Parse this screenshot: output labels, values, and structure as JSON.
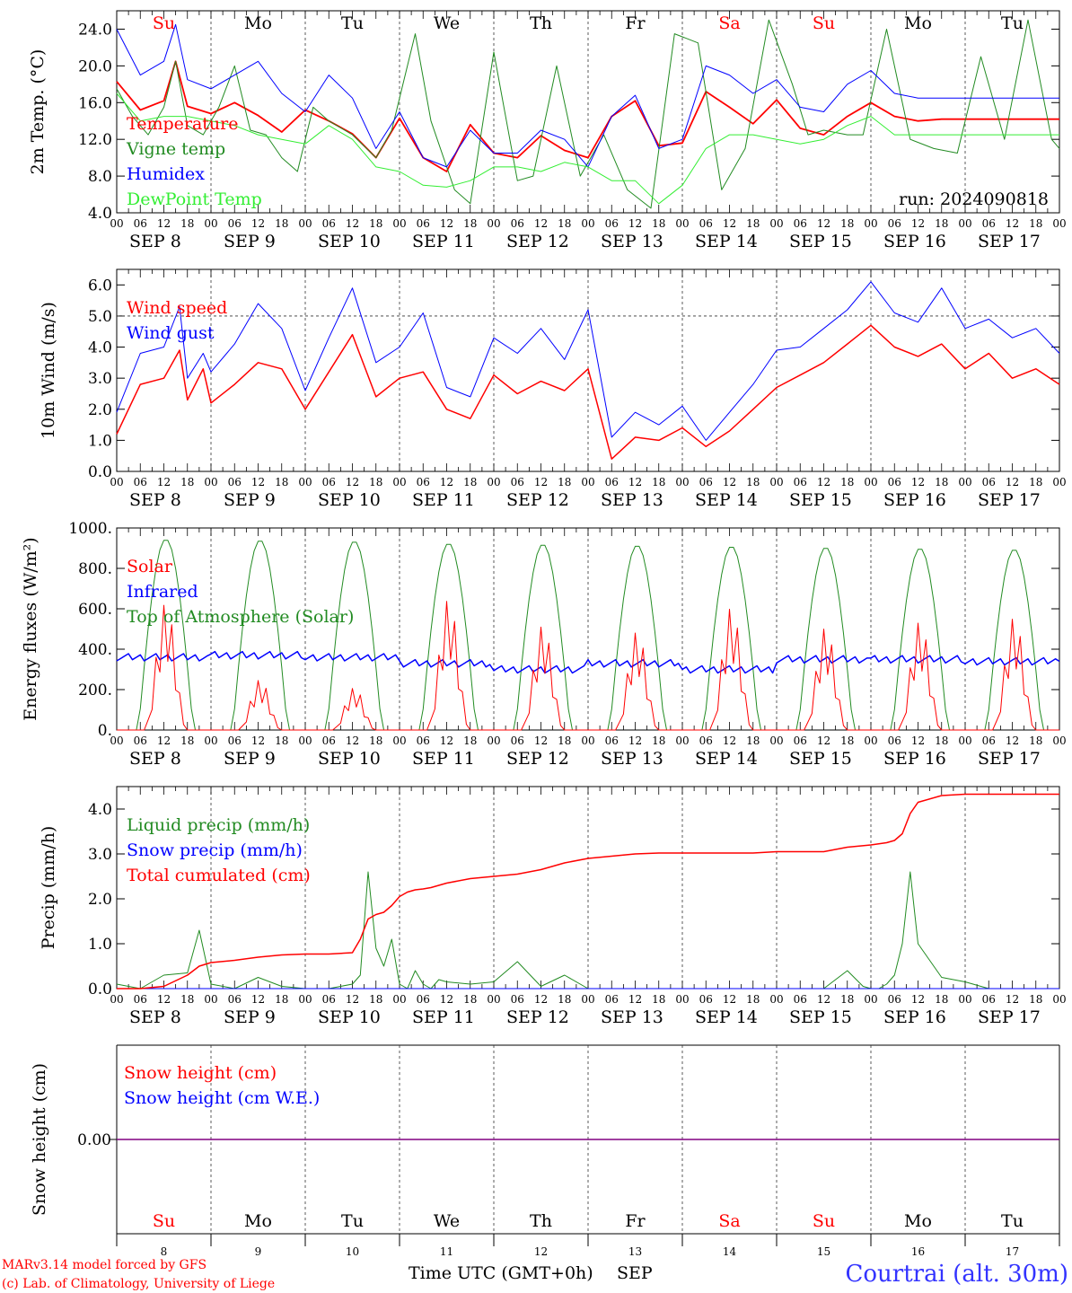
{
  "days": [
    "Su",
    "Mo",
    "Tu",
    "We",
    "Th",
    "Fr",
    "Sa",
    "Su",
    "Mo",
    "Tu"
  ],
  "weekend_color": "#ff0000",
  "weekday_color": "#000000",
  "dates": [
    "SEP  8",
    "SEP  9",
    "SEP 10",
    "SEP 11",
    "SEP 12",
    "SEP 13",
    "SEP 14",
    "SEP 15",
    "SEP 16",
    "SEP 17"
  ],
  "hour_labels": [
    "00",
    "06",
    "12",
    "18"
  ],
  "end_hour_label": "00",
  "bottom_day_numbers": [
    "8",
    "9",
    "10",
    "11",
    "12",
    "13",
    "14",
    "15",
    "16",
    "17"
  ],
  "footer": {
    "model": "MARv3.14 model forced by GFS",
    "copyright": "(c) Lab. of Climatology, University of Liege",
    "xlabel": "Time UTC (GMT+0h)",
    "month": "SEP",
    "station": "Courtrai (alt. 30m)"
  },
  "run_label": "run: 2024090818",
  "colors": {
    "red": "#ff0000",
    "green": "#228b22",
    "blue": "#0000ff",
    "lightgreen": "#33ee33",
    "purple": "#800080"
  },
  "chart_data": [
    {
      "type": "line",
      "ylabel": "2m Temp. (°C)",
      "ylim": [
        4,
        26
      ],
      "yticks": [
        "4.0",
        "8.0",
        "12.0",
        "16.0",
        "20.0",
        "24.0"
      ],
      "ytick_values": [
        4,
        8,
        12,
        16,
        20,
        24
      ],
      "x_unit": "hours since SEP 8 00 UTC",
      "series": [
        {
          "name": "Temperature",
          "color": "#ff0000",
          "width": 1.8,
          "x": [
            0,
            6,
            12,
            15,
            18,
            24,
            30,
            36,
            42,
            48,
            54,
            60,
            66,
            72,
            78,
            84,
            90,
            96,
            102,
            108,
            114,
            120,
            126,
            132,
            138,
            144,
            150,
            156,
            162,
            168,
            174,
            180,
            186,
            192,
            198,
            204,
            210,
            216,
            222,
            228,
            234,
            240
          ],
          "y": [
            18.3,
            15.2,
            16.2,
            20.5,
            15.6,
            14.8,
            16.0,
            14.6,
            12.8,
            15.2,
            14.0,
            12.6,
            10.0,
            14.3,
            10.0,
            8.5,
            13.6,
            10.5,
            10.0,
            12.4,
            10.8,
            10.0,
            14.5,
            16.2,
            11.3,
            11.6,
            17.2,
            15.5,
            13.7,
            16.3,
            13.2,
            12.5,
            14.5,
            16.0,
            14.5,
            14.0,
            14.2,
            14.2,
            14.2,
            14.2,
            14.2,
            14.2
          ]
        },
        {
          "name": "Vigne temp",
          "color": "#228b22",
          "width": 1,
          "x": [
            0,
            4,
            8,
            12,
            15,
            18,
            22,
            26,
            30,
            34,
            38,
            42,
            46,
            50,
            54,
            60,
            66,
            70,
            76,
            80,
            86,
            90,
            96,
            102,
            106,
            112,
            118,
            124,
            130,
            136,
            142,
            148,
            154,
            160,
            166,
            172,
            176,
            180,
            186,
            190,
            196,
            202,
            208,
            214,
            220,
            226,
            232,
            238,
            240
          ],
          "y": [
            17.5,
            14.5,
            12.5,
            15.5,
            20.5,
            13.5,
            12.5,
            15.5,
            20.0,
            13.0,
            12.5,
            10.0,
            8.5,
            15.5,
            14.0,
            12.5,
            10.0,
            13.0,
            23.5,
            14.0,
            6.5,
            5.0,
            21.5,
            7.5,
            8.0,
            20.0,
            8.0,
            12.5,
            6.5,
            4.5,
            23.5,
            22.5,
            6.5,
            11.0,
            25.0,
            18.0,
            12.5,
            13.0,
            12.5,
            12.5,
            24.0,
            12.0,
            11.0,
            10.5,
            21.0,
            12.0,
            25.0,
            12.0,
            11.0
          ]
        },
        {
          "name": "Humidex",
          "color": "#0000ff",
          "width": 1,
          "x": [
            0,
            6,
            12,
            15,
            18,
            24,
            30,
            36,
            42,
            48,
            54,
            60,
            66,
            72,
            78,
            84,
            90,
            96,
            102,
            108,
            114,
            120,
            126,
            132,
            138,
            144,
            150,
            156,
            162,
            168,
            174,
            180,
            186,
            192,
            198,
            204,
            210,
            216,
            222,
            228,
            234,
            240
          ],
          "y": [
            24.0,
            19.0,
            20.5,
            24.5,
            18.5,
            17.5,
            19.0,
            20.5,
            17.0,
            15.0,
            19.0,
            16.5,
            11.0,
            15.0,
            10.0,
            9.0,
            13.0,
            10.5,
            10.5,
            13.0,
            12.0,
            9.0,
            14.5,
            16.8,
            11.0,
            12.0,
            20.0,
            19.0,
            17.0,
            18.5,
            15.5,
            15.0,
            18.0,
            19.5,
            17.0,
            16.5,
            16.5,
            16.5,
            16.5,
            16.5,
            16.5,
            16.5
          ]
        },
        {
          "name": "DewPoint Temp",
          "color": "#33ee33",
          "width": 1,
          "x": [
            0,
            6,
            12,
            18,
            24,
            30,
            36,
            42,
            48,
            54,
            60,
            66,
            72,
            78,
            84,
            90,
            96,
            102,
            108,
            114,
            120,
            126,
            132,
            138,
            144,
            150,
            156,
            162,
            168,
            174,
            180,
            186,
            192,
            198,
            204,
            210,
            216,
            222,
            228,
            234,
            240
          ],
          "y": [
            17.0,
            14.0,
            14.5,
            14.5,
            14.0,
            13.5,
            12.5,
            12.0,
            11.5,
            13.5,
            12.0,
            9.0,
            8.5,
            7.0,
            6.8,
            7.5,
            9.0,
            9.0,
            8.5,
            9.5,
            9.0,
            7.5,
            7.5,
            5.0,
            7.0,
            11.0,
            12.5,
            12.5,
            12.0,
            11.5,
            12.0,
            13.5,
            14.5,
            12.5,
            12.5,
            12.5,
            12.5,
            12.5,
            12.5,
            12.5,
            12.5
          ]
        }
      ],
      "legend": [
        "Temperature",
        "Vigne temp",
        "Humidex",
        "DewPoint Temp"
      ]
    },
    {
      "type": "line",
      "ylabel": "10m Wind (m/s)",
      "ylim": [
        0,
        6.5
      ],
      "yticks": [
        "0.0",
        "1.0",
        "2.0",
        "3.0",
        "4.0",
        "5.0",
        "6.0"
      ],
      "ytick_values": [
        0,
        1,
        2,
        3,
        4,
        5,
        6
      ],
      "reference_line": 5.0,
      "x_unit": "hours since SEP 8 00 UTC",
      "series": [
        {
          "name": "Wind speed",
          "color": "#ff0000",
          "width": 1.5,
          "x": [
            0,
            6,
            12,
            16,
            18,
            22,
            24,
            30,
            36,
            42,
            48,
            54,
            60,
            66,
            72,
            78,
            84,
            90,
            96,
            102,
            108,
            114,
            120,
            126,
            132,
            138,
            144,
            150,
            156,
            162,
            168,
            174,
            180,
            186,
            192,
            198,
            204,
            210,
            216,
            222,
            228,
            234,
            240
          ],
          "y": [
            1.2,
            2.8,
            3.0,
            3.9,
            2.3,
            3.3,
            2.2,
            2.8,
            3.5,
            3.3,
            2.0,
            3.2,
            4.4,
            2.4,
            3.0,
            3.2,
            2.0,
            1.7,
            3.1,
            2.5,
            2.9,
            2.6,
            3.3,
            0.4,
            1.1,
            1.0,
            1.4,
            0.8,
            1.3,
            2.0,
            2.7,
            3.1,
            3.5,
            4.1,
            4.7,
            4.0,
            3.7,
            4.1,
            3.3,
            3.8,
            3.0,
            3.3,
            2.8
          ]
        },
        {
          "name": "Wind gust",
          "color": "#0000ff",
          "width": 1,
          "x": [
            0,
            6,
            12,
            16,
            18,
            22,
            24,
            30,
            36,
            42,
            48,
            54,
            60,
            66,
            72,
            78,
            84,
            90,
            96,
            102,
            108,
            114,
            120,
            126,
            132,
            138,
            144,
            150,
            156,
            162,
            168,
            174,
            180,
            186,
            192,
            198,
            204,
            210,
            216,
            222,
            228,
            234,
            240
          ],
          "y": [
            1.9,
            3.8,
            4.0,
            5.3,
            3.0,
            3.8,
            3.2,
            4.1,
            5.4,
            4.6,
            2.6,
            4.3,
            5.9,
            3.5,
            4.0,
            5.1,
            2.7,
            2.4,
            4.3,
            3.8,
            4.6,
            3.6,
            5.2,
            1.1,
            1.9,
            1.5,
            2.1,
            1.0,
            1.9,
            2.8,
            3.9,
            4.0,
            4.6,
            5.2,
            6.1,
            5.1,
            4.8,
            5.9,
            4.6,
            4.9,
            4.3,
            4.6,
            3.8
          ]
        }
      ],
      "legend": [
        "Wind speed",
        "Wind gust"
      ]
    },
    {
      "type": "line",
      "ylabel": "Energy fluxes (W/m²)",
      "ylim": [
        0,
        1000
      ],
      "yticks": [
        "0.",
        "200.",
        "400.",
        "600.",
        "800.",
        "1000."
      ],
      "ytick_values": [
        0,
        200,
        400,
        600,
        800,
        1000
      ],
      "x_unit": "hours since SEP 8 00 UTC",
      "solar_peaks": [
        630,
        250,
        210,
        650,
        520,
        490,
        610,
        510,
        540,
        560
      ],
      "toa_peaks": [
        945,
        940,
        935,
        925,
        920,
        915,
        910,
        905,
        900,
        895
      ],
      "infrared_level": [
        360,
        370,
        360,
        330,
        300,
        330,
        300,
        350,
        350,
        340
      ],
      "legend": [
        "Solar",
        "Infrared",
        "Top of Atmosphere (Solar)"
      ],
      "series_colors": [
        "#ff0000",
        "#0000ff",
        "#228b22"
      ]
    },
    {
      "type": "line",
      "ylabel": "Precip (mm/h)",
      "ylim": [
        0,
        4.5
      ],
      "yticks": [
        "0.0",
        "1.0",
        "2.0",
        "3.0",
        "4.0"
      ],
      "ytick_values": [
        0,
        1,
        2,
        3,
        4
      ],
      "x_unit": "hours since SEP 8 00 UTC",
      "series": [
        {
          "name": "Liquid precip (mm/h)",
          "color": "#228b22",
          "width": 1,
          "x": [
            0,
            6,
            12,
            18,
            21,
            24,
            30,
            36,
            42,
            48,
            54,
            60,
            62,
            64,
            66,
            68,
            70,
            72,
            74,
            76,
            78,
            80,
            82,
            84,
            90,
            96,
            102,
            108,
            114,
            120,
            126,
            132,
            138,
            144,
            150,
            156,
            162,
            168,
            174,
            180,
            186,
            190,
            192,
            194,
            196,
            198,
            200,
            202,
            204,
            210,
            216,
            222,
            228,
            234,
            240
          ],
          "y": [
            0.1,
            0.0,
            0.3,
            0.35,
            1.3,
            0.1,
            0.0,
            0.25,
            0.05,
            0.0,
            0.0,
            0.1,
            0.3,
            2.6,
            0.9,
            0.5,
            1.1,
            0.1,
            0.0,
            0.4,
            0.1,
            0.0,
            0.2,
            0.15,
            0.1,
            0.15,
            0.6,
            0.05,
            0.3,
            0.0,
            0.0,
            0.0,
            0.0,
            0.0,
            0.0,
            0.0,
            0.0,
            0.0,
            0.0,
            0.0,
            0.4,
            0.05,
            0.0,
            0.0,
            0.1,
            0.3,
            1.0,
            2.6,
            1.0,
            0.25,
            0.15,
            0.0,
            0.0,
            0.0,
            0.0
          ]
        },
        {
          "name": "Snow precip (mm/h)",
          "color": "#0000ff",
          "width": 1,
          "x": [
            0,
            240
          ],
          "y": [
            0,
            0
          ]
        },
        {
          "name": "Total cumulated (cm)",
          "color": "#ff0000",
          "width": 1.5,
          "x": [
            0,
            6,
            12,
            18,
            21,
            24,
            30,
            36,
            42,
            48,
            54,
            60,
            62,
            64,
            66,
            68,
            70,
            72,
            74,
            76,
            78,
            80,
            84,
            90,
            96,
            102,
            108,
            114,
            120,
            126,
            132,
            138,
            144,
            150,
            156,
            162,
            168,
            174,
            180,
            186,
            192,
            196,
            198,
            200,
            202,
            204,
            210,
            216,
            222,
            228,
            234,
            240
          ],
          "y": [
            0.0,
            0.0,
            0.05,
            0.3,
            0.5,
            0.58,
            0.63,
            0.7,
            0.75,
            0.77,
            0.77,
            0.8,
            1.1,
            1.55,
            1.65,
            1.7,
            1.85,
            2.05,
            2.15,
            2.2,
            2.22,
            2.25,
            2.35,
            2.45,
            2.5,
            2.55,
            2.65,
            2.8,
            2.9,
            2.95,
            3.0,
            3.02,
            3.02,
            3.02,
            3.02,
            3.02,
            3.05,
            3.05,
            3.05,
            3.15,
            3.2,
            3.25,
            3.3,
            3.45,
            3.9,
            4.15,
            4.3,
            4.33,
            4.33,
            4.33,
            4.33,
            4.33
          ]
        }
      ],
      "legend": [
        "Liquid precip (mm/h)",
        "Snow precip (mm/h)",
        "Total cumulated (cm)"
      ]
    },
    {
      "type": "line",
      "ylabel": "Snow height (cm)",
      "yticks": [
        "0.00"
      ],
      "ytick_values": [
        0
      ],
      "ylim": [
        -1,
        1
      ],
      "series": [
        {
          "name": "Snow height (cm)",
          "color": "#ff0000",
          "x": [
            0,
            240
          ],
          "y": [
            0,
            0
          ]
        },
        {
          "name": "Snow height (cm W.E.)",
          "color": "#0000ff",
          "x": [
            0,
            240
          ],
          "y": [
            0,
            0
          ]
        }
      ],
      "legend": [
        "Snow height (cm)",
        "Snow height (cm W.E.)"
      ]
    }
  ]
}
